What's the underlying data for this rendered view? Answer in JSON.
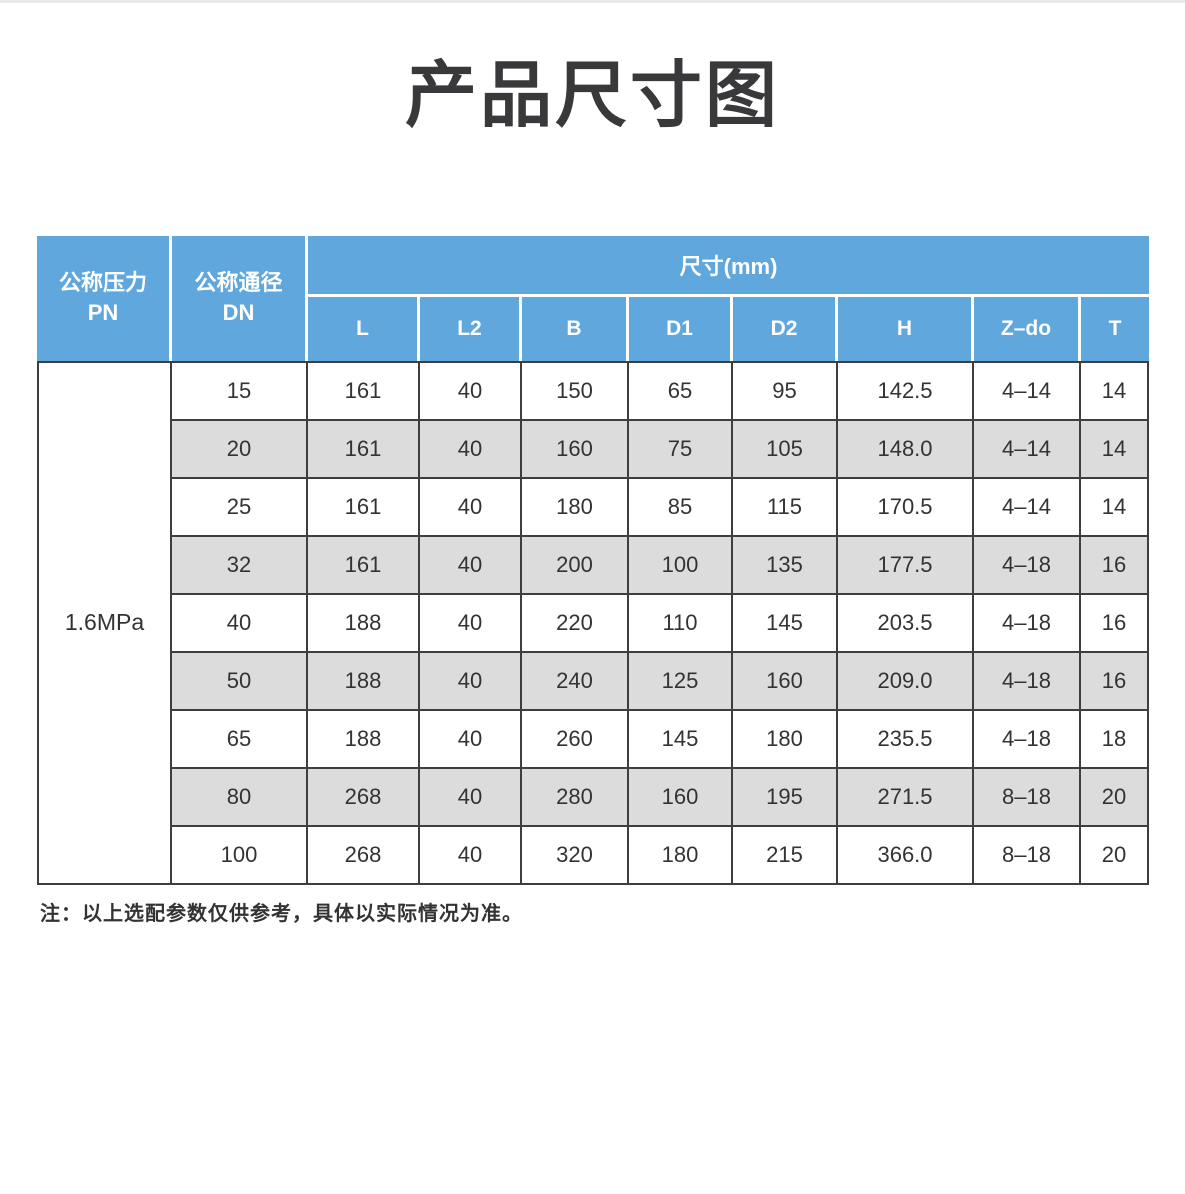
{
  "page": {
    "title": "产品尺寸图"
  },
  "colors": {
    "header_bg": "#5FA7DC",
    "header_text": "#FFFFFF",
    "row_bg": "#FFFFFF",
    "row_alt_bg": "#DCDCDC",
    "grid_border": "#3E3E3E",
    "title_text": "#39393B",
    "body_text": "#333333"
  },
  "table": {
    "header": {
      "pn": "公称压力\nPN",
      "dn": "公称通径\nDN",
      "size_group": "尺寸(mm)",
      "cols": [
        "L",
        "L2",
        "B",
        "D1",
        "D2",
        "H",
        "Z–do",
        "T"
      ]
    },
    "pn_value": "1.6MPa",
    "rows": [
      [
        "15",
        "161",
        "40",
        "150",
        "65",
        "95",
        "142.5",
        "4–14",
        "14"
      ],
      [
        "20",
        "161",
        "40",
        "160",
        "75",
        "105",
        "148.0",
        "4–14",
        "14"
      ],
      [
        "25",
        "161",
        "40",
        "180",
        "85",
        "115",
        "170.5",
        "4–14",
        "14"
      ],
      [
        "32",
        "161",
        "40",
        "200",
        "100",
        "135",
        "177.5",
        "4–18",
        "16"
      ],
      [
        "40",
        "188",
        "40",
        "220",
        "110",
        "145",
        "203.5",
        "4–18",
        "16"
      ],
      [
        "50",
        "188",
        "40",
        "240",
        "125",
        "160",
        "209.0",
        "4–18",
        "16"
      ],
      [
        "65",
        "188",
        "40",
        "260",
        "145",
        "180",
        "235.5",
        "4–18",
        "18"
      ],
      [
        "80",
        "268",
        "40",
        "280",
        "160",
        "195",
        "271.5",
        "8–18",
        "20"
      ],
      [
        "100",
        "268",
        "40",
        "320",
        "180",
        "215",
        "366.0",
        "8–18",
        "20"
      ]
    ]
  },
  "note": {
    "text": "注：以上选配参数仅供参考，具体以实际情况为准。"
  }
}
